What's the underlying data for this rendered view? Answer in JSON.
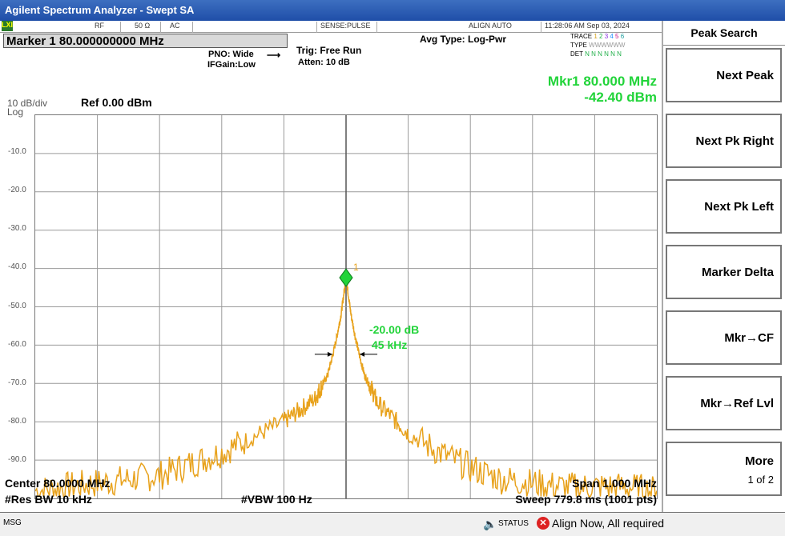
{
  "window": {
    "title": "Agilent Spectrum Analyzer - Swept SA"
  },
  "status_bar": {
    "lxi": "LXI",
    "rf": "RF",
    "impedance": "50 Ω",
    "coupling": "AC",
    "sense": "SENSE:PULSE",
    "align": "ALIGN AUTO",
    "datetime": "11:28:06 AM Sep 03, 2024"
  },
  "marker": {
    "label": "Marker 1  80.000000000 MHz",
    "readout_freq": "Mkr1 80.000 MHz",
    "readout_amp": "-42.40 dBm",
    "marker_tag": "1"
  },
  "settings": {
    "pno": "PNO: Wide",
    "ifgain": "IFGain:Low",
    "trig": "Trig: Free Run",
    "atten": "Atten: 10 dB",
    "avg_type": "Avg Type: Log-Pwr"
  },
  "trace_info": {
    "trace_label": "TRACE",
    "type_label": "TYPE",
    "det_label": "DET",
    "trace_nums": [
      "1",
      "2",
      "3",
      "4",
      "5",
      "6"
    ],
    "trace_colors": [
      "#d4a017",
      "#22b04a",
      "#8a2be2",
      "#1e90ff",
      "#c71585",
      "#22a0a0"
    ],
    "type_value": "WWWWWW",
    "det_value": "N N N N N N"
  },
  "scale": {
    "per_div": "10 dB/div",
    "mode": "Log",
    "ref": "Ref 0.00 dBm",
    "y_labels": [
      "-10.0",
      "-20.0",
      "-30.0",
      "-40.0",
      "-50.0",
      "-60.0",
      "-70.0",
      "-80.0",
      "-90.0"
    ]
  },
  "bw_annot": {
    "db": "-20.00 dB",
    "hz": "45 kHz"
  },
  "bottom": {
    "center": "Center 80.0000 MHz",
    "span": "Span 1.000 MHz",
    "rbw": "#Res BW 10 kHz",
    "vbw": "#VBW 100 Hz",
    "sweep": "Sweep  779.8 ms (1001 pts)"
  },
  "softkeys": {
    "title": "Peak Search",
    "keys": [
      {
        "label": "Next Peak"
      },
      {
        "label": "Next Pk Right"
      },
      {
        "label": "Next Pk Left"
      },
      {
        "label": "Marker Delta"
      },
      {
        "label": "Mkr→CF"
      },
      {
        "label": "Mkr→Ref Lvl"
      },
      {
        "label": "More",
        "sub": "1 of 2"
      }
    ]
  },
  "msg": {
    "label": "MSG",
    "status": "STATUS",
    "text": "Align Now, All required"
  },
  "chart_data": {
    "type": "line",
    "x": [
      -500,
      -450,
      -400,
      -350,
      -300,
      -250,
      -200,
      -150,
      -100,
      -75,
      -50,
      -40,
      -30,
      -22,
      -15,
      -8,
      -3,
      0,
      3,
      8,
      15,
      22,
      30,
      40,
      50,
      75,
      100,
      150,
      200,
      250,
      300,
      350,
      400,
      450,
      500
    ],
    "series": [
      {
        "values": [
          -98,
          -97,
          -96,
          -95,
          -94,
          -91,
          -88,
          -84,
          -80,
          -77,
          -74,
          -71,
          -68,
          -63,
          -58,
          -52,
          -46,
          -42.4,
          -46,
          -52,
          -58,
          -63,
          -68,
          -71,
          -75,
          -79,
          -83,
          -88,
          -92,
          -95,
          -96,
          -97,
          -97,
          -97,
          -98
        ],
        "color": "#e8a21c"
      }
    ],
    "xlim": [
      -500,
      500
    ],
    "ylim": [
      -100,
      0
    ],
    "yticks": [
      -10,
      -20,
      -30,
      -40,
      -50,
      -60,
      -70,
      -80,
      -90
    ],
    "grid": true,
    "peak": {
      "x": 0,
      "y": -42.4
    }
  }
}
